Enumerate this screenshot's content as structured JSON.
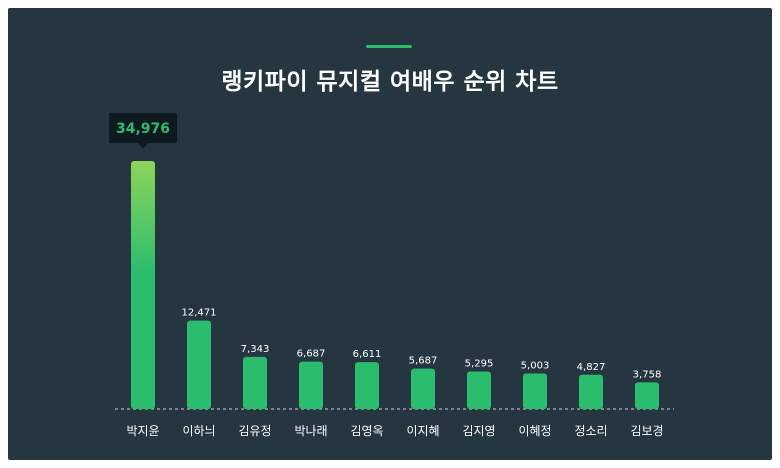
{
  "title": "랭키파이 뮤지컬 여배우 순위 차트",
  "colors": {
    "background": "#263640",
    "accent": "#2bbd6e",
    "bar_top_highlight": "#8fd35a",
    "tooltip_bg": "#0f1a20"
  },
  "chart_data": {
    "type": "bar",
    "title": "랭키파이 뮤지컬 여배우 순위 차트",
    "categories": [
      "박지윤",
      "이하늬",
      "김유정",
      "박나래",
      "김영옥",
      "이지혜",
      "김지영",
      "이혜정",
      "정소리",
      "김보경"
    ],
    "values": [
      34976,
      12471,
      7343,
      6687,
      6611,
      5687,
      5295,
      5003,
      4827,
      3758
    ],
    "value_labels": [
      "34,976",
      "12,471",
      "7,343",
      "6,687",
      "6,611",
      "5,687",
      "5,295",
      "5,003",
      "4,827",
      "3,758"
    ],
    "highlight_index": 0,
    "xlabel": "",
    "ylabel": "",
    "ylim": [
      0,
      34976
    ],
    "grid": false,
    "legend": "none"
  }
}
